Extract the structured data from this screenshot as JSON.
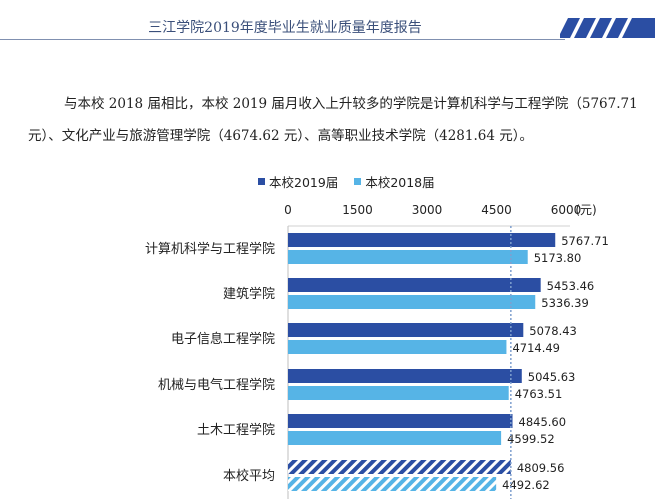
{
  "header": {
    "title": "三江学院2019年度毕业生就业质量年度报告"
  },
  "paragraph": {
    "line1": "与本校 2018 届相比，本校 2019 届月收入上升较多的学院是计算机科学与工程学院（5767.71",
    "line2": "元）、文化产业与旅游管理学院（4674.62 元）、高等职业技术学院（4281.64 元）。"
  },
  "chart_data": {
    "type": "bar",
    "orientation": "horizontal",
    "title": "",
    "xlabel": "",
    "ylabel": "",
    "unit": "(元)",
    "xlim": [
      0,
      6000
    ],
    "ticks": [
      0,
      1500,
      3000,
      4500,
      6000
    ],
    "reference_line": 4809.56,
    "categories": [
      "计算机科学与工程学院",
      "建筑学院",
      "电子信息工程学院",
      "机械与电气工程学院",
      "土木工程学院",
      "本校平均"
    ],
    "series": [
      {
        "name": "本校2019届",
        "color": "#2b4ea3",
        "values": [
          5767.71,
          5453.46,
          5078.43,
          5045.63,
          4845.6,
          4809.56
        ]
      },
      {
        "name": "本校2018届",
        "color": "#56b4e6",
        "values": [
          5173.8,
          5336.39,
          4714.49,
          4763.51,
          4599.52,
          4492.62
        ]
      }
    ],
    "hatched_categories": [
      "本校平均"
    ],
    "legend_position": "top"
  }
}
